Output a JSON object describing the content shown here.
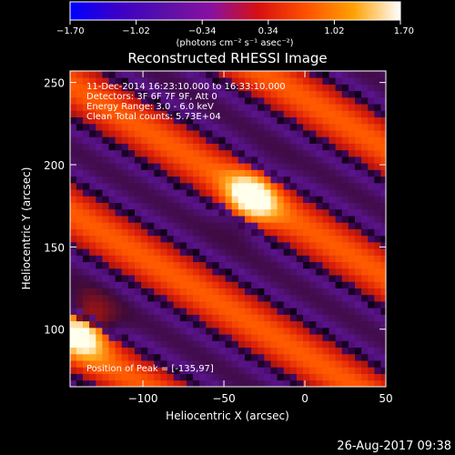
{
  "colorbar": {
    "ticks": [
      "-1.70",
      "-1.02",
      "-0.34",
      "0.34",
      "1.02",
      "1.70"
    ],
    "tick_values": [
      -1.7,
      -1.02,
      -0.34,
      0.34,
      1.02,
      1.7
    ],
    "unit_label": "(photons cm⁻² s⁻¹ asec⁻²)",
    "range": [
      -1.7,
      1.7
    ],
    "colors": [
      "#0000ff",
      "#3a00c8",
      "#5a10a8",
      "#8a10a0",
      "#d81010",
      "#ff5000",
      "#ffa000",
      "#ffffff"
    ]
  },
  "chart_data": {
    "type": "heatmap",
    "title": "Reconstructed RHESSI Image",
    "xlabel": "Heliocentric X (arcsec)",
    "ylabel": "Heliocentric Y (arcsec)",
    "xlim": [
      -145,
      50
    ],
    "ylim": [
      65,
      257
    ],
    "xticks": [
      -100,
      -50,
      0,
      50
    ],
    "xtick_labels": [
      "−100",
      "−50",
      "0",
      "50"
    ],
    "yticks": [
      100,
      150,
      200,
      250
    ],
    "ytick_labels": [
      "100",
      "150",
      "200",
      "250"
    ],
    "annotations": [
      "11-Dec-2014 16:23:10.000 to 16:33:10.000",
      "Detectors: 3F 6F 7F 9F, Att 0",
      "Energy Range: 3.0 - 6.0 keV",
      "Clean    Total counts: 5.73E+04"
    ],
    "peak_label": "Position of Peak = [-135,97]",
    "peak": [
      -135,
      97
    ],
    "pattern": {
      "description_values": "diagonal fringes",
      "period": 78,
      "phase_point": [
        -35,
        180
      ],
      "slope": 0.6,
      "hot_spots": [
        [
          -35,
          178
        ],
        [
          -138,
          98
        ]
      ]
    }
  },
  "timestamp": "26-Aug-2017 09:38"
}
